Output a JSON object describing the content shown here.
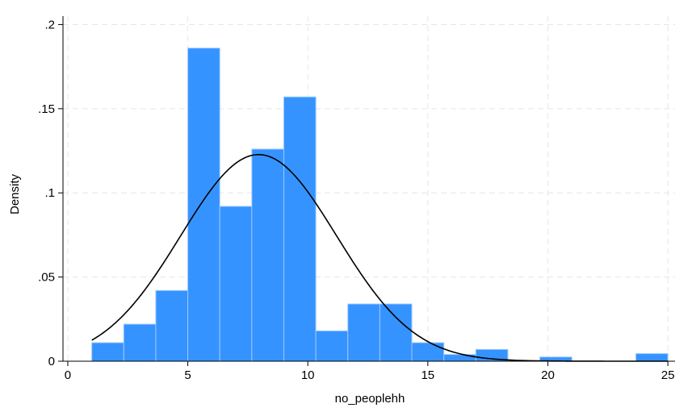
{
  "chart_data": {
    "type": "bar",
    "subtype": "histogram",
    "xlabel": "no_peoplehh",
    "ylabel": "Density",
    "xlim": [
      -0.2,
      25.3
    ],
    "ylim": [
      0,
      0.205
    ],
    "xticks": [
      {
        "value": 0,
        "label": "0"
      },
      {
        "value": 5,
        "label": "5"
      },
      {
        "value": 10,
        "label": "10"
      },
      {
        "value": 15,
        "label": "15"
      },
      {
        "value": 20,
        "label": "20"
      },
      {
        "value": 25,
        "label": "25"
      }
    ],
    "yticks": [
      {
        "value": 0,
        "label": "0"
      },
      {
        "value": 0.05,
        "label": ".05"
      },
      {
        "value": 0.1,
        "label": ".1"
      },
      {
        "value": 0.15,
        "label": ".15"
      },
      {
        "value": 0.2,
        "label": ".2"
      }
    ],
    "grid": true,
    "bin_start": 1,
    "bin_width": 1.333,
    "bins": [
      {
        "x0": 1.0,
        "x1": 2.333,
        "density": 0.011
      },
      {
        "x0": 2.333,
        "x1": 3.667,
        "density": 0.022
      },
      {
        "x0": 3.667,
        "x1": 5.0,
        "density": 0.042
      },
      {
        "x0": 5.0,
        "x1": 6.333,
        "density": 0.186
      },
      {
        "x0": 6.333,
        "x1": 7.667,
        "density": 0.092
      },
      {
        "x0": 7.667,
        "x1": 9.0,
        "density": 0.126
      },
      {
        "x0": 9.0,
        "x1": 10.333,
        "density": 0.157
      },
      {
        "x0": 10.333,
        "x1": 11.667,
        "density": 0.018
      },
      {
        "x0": 11.667,
        "x1": 13.0,
        "density": 0.034
      },
      {
        "x0": 13.0,
        "x1": 14.333,
        "density": 0.034
      },
      {
        "x0": 14.333,
        "x1": 15.667,
        "density": 0.011
      },
      {
        "x0": 15.667,
        "x1": 17.0,
        "density": 0.004
      },
      {
        "x0": 17.0,
        "x1": 18.333,
        "density": 0.007
      },
      {
        "x0": 18.333,
        "x1": 19.667,
        "density": 0.0
      },
      {
        "x0": 19.667,
        "x1": 21.0,
        "density": 0.0025
      },
      {
        "x0": 21.0,
        "x1": 22.333,
        "density": 0.0
      },
      {
        "x0": 22.333,
        "x1": 23.667,
        "density": 0.0
      },
      {
        "x0": 23.667,
        "x1": 25.0,
        "density": 0.0045
      }
    ],
    "normal_curve": {
      "mean": 7.95,
      "sd": 3.25,
      "x_range": [
        1.0,
        25.0
      ]
    },
    "colors": {
      "bar_fill": "#3593ff",
      "bar_edge": "#9cc9ff",
      "curve": "#000000",
      "grid": "#e6e6e6",
      "axis": "#000000"
    }
  }
}
